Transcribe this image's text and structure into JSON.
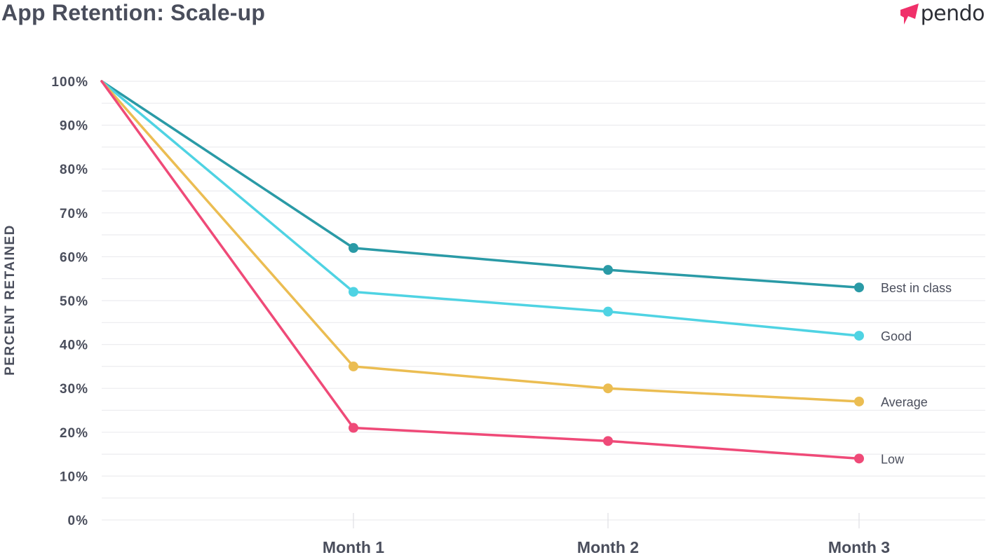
{
  "header": {
    "title": "App Retention: Scale-up",
    "brand": "pendo",
    "brand_color": "#f0306a"
  },
  "chart_data": {
    "type": "line",
    "title": "App Retention: Scale-up",
    "xlabel": "",
    "ylabel": "PERCENT RETAINED",
    "x": [
      "",
      "Month 1",
      "Month 2",
      "Month 3"
    ],
    "x_tick_labels": [
      "Month 1",
      "Month 2",
      "Month 3"
    ],
    "ylim": [
      0,
      100
    ],
    "y_ticks": [
      0,
      10,
      20,
      30,
      40,
      50,
      60,
      70,
      80,
      90,
      100
    ],
    "y_tick_labels": [
      "0%",
      "10%",
      "20%",
      "30%",
      "40%",
      "50%",
      "60%",
      "70%",
      "80%",
      "90%",
      "100%"
    ],
    "grid": true,
    "legend": "labels at line ends (right)",
    "series": [
      {
        "name": "Best in class",
        "color": "#2a9aa6",
        "values": [
          100,
          62,
          57,
          53
        ]
      },
      {
        "name": "Good",
        "color": "#4fd3e3",
        "values": [
          100,
          52,
          47.5,
          42
        ]
      },
      {
        "name": "Average",
        "color": "#ebbd52",
        "values": [
          100,
          35,
          30,
          27
        ]
      },
      {
        "name": "Low",
        "color": "#ef4a78",
        "values": [
          100,
          21,
          18,
          14
        ]
      }
    ]
  }
}
